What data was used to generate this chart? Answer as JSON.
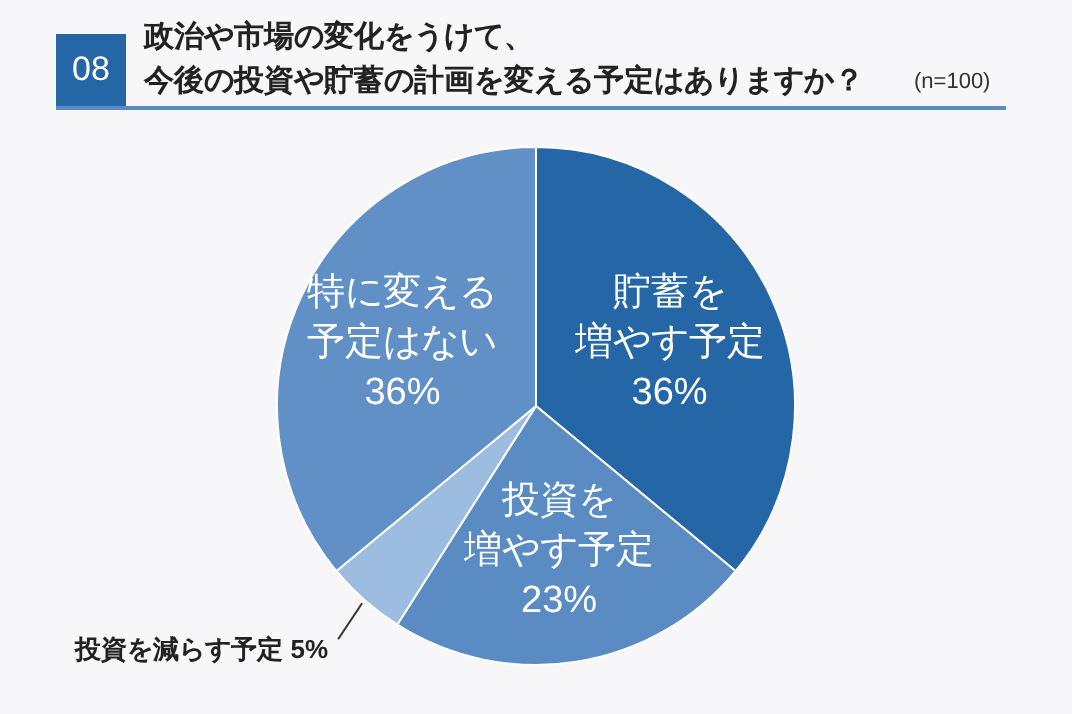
{
  "chart_data": {
    "type": "pie",
    "title": "政治や市場の変化をうけて、今後の投資や貯蓄の計画を変える予定はありますか？",
    "subtitle": "(n=100)",
    "annotations": [
      "08"
    ],
    "categories": [
      "貯蓄を増やす予定",
      "投資を増やす予定",
      "投資を減らす予定",
      "特に変える予定はない"
    ],
    "values": [
      36,
      23,
      5,
      36
    ],
    "value_labels": [
      "36%",
      "23%",
      "5%",
      "36%"
    ],
    "colors": [
      "#2566a6",
      "#5a8cc3",
      "#9dbde0",
      "#6090c6"
    ],
    "legend": false
  }
}
